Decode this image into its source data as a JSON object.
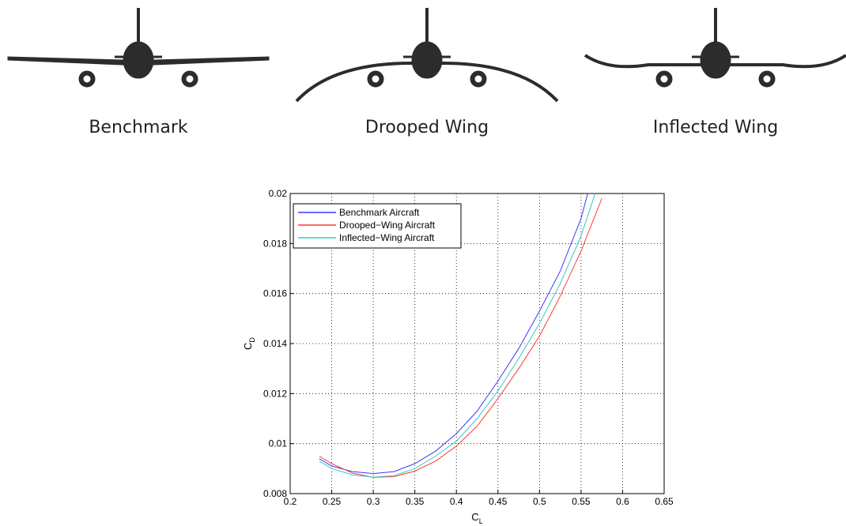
{
  "aircraft_labels": [
    "Benchmark",
    "Drooped Wing",
    "Inflected Wing"
  ],
  "chart_data": {
    "type": "line",
    "xlabel": "C",
    "xlabel_sub": "L",
    "ylabel": "C",
    "ylabel_sub": "D",
    "xlim": [
      0.2,
      0.65
    ],
    "xticks": [
      0.2,
      0.25,
      0.3,
      0.35,
      0.4,
      0.45,
      0.5,
      0.55,
      0.6,
      0.65
    ],
    "ylim": [
      0.008,
      0.02
    ],
    "yticks": [
      0.008,
      0.01,
      0.012,
      0.014,
      0.016,
      0.018,
      0.02
    ],
    "grid": true,
    "legend": "upper-left",
    "series": [
      {
        "name": "Benchmark Aircraft",
        "color": "#3a3aff",
        "x": [
          0.235,
          0.25,
          0.275,
          0.3,
          0.325,
          0.35,
          0.375,
          0.4,
          0.425,
          0.45,
          0.475,
          0.5,
          0.525,
          0.55,
          0.558
        ],
        "values": [
          0.0094,
          0.0091,
          0.00888,
          0.0088,
          0.00888,
          0.0092,
          0.0097,
          0.0104,
          0.0113,
          0.0125,
          0.0138,
          0.0153,
          0.0169,
          0.019,
          0.02
        ]
      },
      {
        "name": "Drooped−Wing Aircraft",
        "color": "#ff3a3a",
        "x": [
          0.235,
          0.25,
          0.275,
          0.3,
          0.325,
          0.35,
          0.375,
          0.4,
          0.425,
          0.45,
          0.475,
          0.5,
          0.525,
          0.55,
          0.575
        ],
        "values": [
          0.0095,
          0.0092,
          0.00882,
          0.00865,
          0.00868,
          0.0089,
          0.0093,
          0.0099,
          0.0107,
          0.0118,
          0.013,
          0.0143,
          0.0159,
          0.0177,
          0.0198
        ]
      },
      {
        "name": "Inflected−Wing Aircraft",
        "color": "#3ac8c0",
        "x": [
          0.235,
          0.25,
          0.275,
          0.3,
          0.325,
          0.35,
          0.375,
          0.4,
          0.425,
          0.45,
          0.475,
          0.5,
          0.525,
          0.55,
          0.567
        ],
        "values": [
          0.0093,
          0.009,
          0.00875,
          0.00866,
          0.00872,
          0.009,
          0.0095,
          0.0101,
          0.011,
          0.0121,
          0.0134,
          0.0148,
          0.0164,
          0.0183,
          0.02
        ]
      }
    ]
  }
}
